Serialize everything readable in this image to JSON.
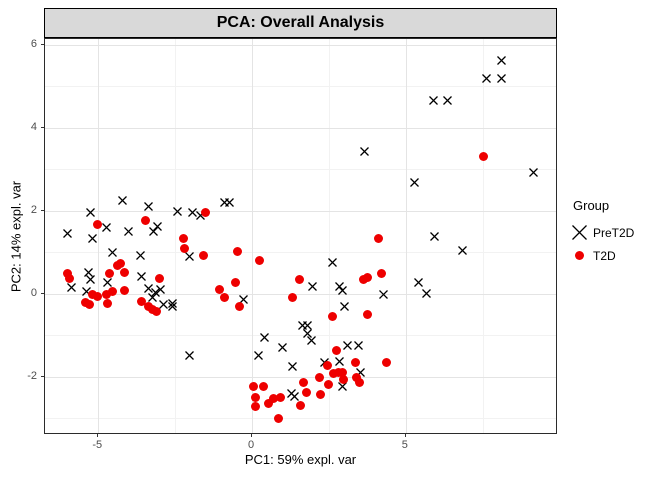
{
  "strip_title": "PCA: Overall Analysis",
  "axes": {
    "x_label": "PC1: 59% expl. var",
    "y_label": "PC2: 14% expl. var",
    "x_tick_labels": [
      "-5",
      "0",
      "5"
    ],
    "y_tick_labels": [
      "6",
      "4",
      "2",
      "0",
      "-2"
    ]
  },
  "legend": {
    "title": "Group",
    "items": [
      {
        "label": "PreT2D",
        "marker": "x",
        "color": "#000000"
      },
      {
        "label": "T2D",
        "marker": "circle",
        "color": "#ee0000"
      }
    ]
  },
  "colors": {
    "strip_background": "#d9d9d9",
    "panel_border": "#2b2b2b",
    "grid_major": "#e4e4e4",
    "grid_minor": "#f2f2f2",
    "axis_text": "#4d4d4d",
    "pret2d": "#000000",
    "t2d": "#ee0000"
  },
  "chart_data": {
    "type": "scatter",
    "title": "PCA: Overall Analysis",
    "xlabel": "PC1: 59% expl. var",
    "ylabel": "PC2: 14% expl. var",
    "xlim": [
      -6.7,
      9.9
    ],
    "ylim": [
      -3.4,
      6.15
    ],
    "x_ticks": [
      -5,
      0,
      5
    ],
    "y_ticks": [
      6,
      4,
      2,
      0,
      -2
    ],
    "x_minor_ticks": [
      -2.5,
      2.5,
      7.5
    ],
    "y_minor_ticks": [
      5,
      3,
      1,
      -1,
      -3
    ],
    "grid": true,
    "legend_position": "right",
    "legend_title": "Group",
    "series": [
      {
        "name": "PreT2D",
        "marker": "x",
        "color": "#000000",
        "points": [
          [
            8.13,
            5.68
          ],
          [
            7.61,
            5.25
          ],
          [
            8.13,
            5.25
          ],
          [
            5.89,
            4.7
          ],
          [
            6.37,
            4.7
          ],
          [
            3.67,
            3.49
          ],
          [
            9.14,
            2.98
          ],
          [
            5.27,
            2.74
          ],
          [
            -0.91,
            2.26
          ],
          [
            -0.72,
            2.26
          ],
          [
            -4.2,
            2.29
          ],
          [
            -3.38,
            2.14
          ],
          [
            -5.24,
            2.0
          ],
          [
            -2.41,
            2.04
          ],
          [
            -1.92,
            2.0
          ],
          [
            -1.66,
            1.93
          ],
          [
            -5.99,
            1.51
          ],
          [
            -4.72,
            1.64
          ],
          [
            -5.18,
            1.39
          ],
          [
            -4.03,
            1.54
          ],
          [
            -3.06,
            1.66
          ],
          [
            -3.19,
            1.54
          ],
          [
            -4.55,
            1.05
          ],
          [
            -3.64,
            0.96
          ],
          [
            -2.02,
            0.94
          ],
          [
            -5.31,
            0.55
          ],
          [
            -5.24,
            0.38
          ],
          [
            -5.86,
            0.19
          ],
          [
            -5.37,
            0.11
          ],
          [
            -4.69,
            0.31
          ],
          [
            -3.58,
            0.47
          ],
          [
            -3.37,
            0.17
          ],
          [
            -2.99,
            0.14
          ],
          [
            -3.14,
            0.07
          ],
          [
            -3.25,
            -0.05
          ],
          [
            -2.6,
            -0.18
          ],
          [
            -2.89,
            -0.22
          ],
          [
            -2.57,
            -0.25
          ],
          [
            -2.04,
            -1.45
          ],
          [
            -0.29,
            -0.08
          ],
          [
            2.63,
            0.8
          ],
          [
            1.98,
            0.21
          ],
          [
            2.86,
            0.23
          ],
          [
            2.93,
            0.13
          ],
          [
            3.02,
            -0.25
          ],
          [
            4.29,
            0.04
          ],
          [
            5.4,
            0.33
          ],
          [
            5.69,
            0.06
          ],
          [
            5.92,
            1.44
          ],
          [
            6.86,
            1.08
          ],
          [
            1.63,
            -0.73
          ],
          [
            1.79,
            -0.71
          ],
          [
            1.82,
            -0.9
          ],
          [
            1.95,
            -1.07
          ],
          [
            0.42,
            -1.02
          ],
          [
            0.98,
            -1.26
          ],
          [
            0.2,
            -1.45
          ],
          [
            1.33,
            -1.7
          ],
          [
            2.37,
            -1.62
          ],
          [
            3.12,
            -1.19
          ],
          [
            3.45,
            -1.21
          ],
          [
            2.86,
            -1.58
          ],
          [
            3.54,
            -1.86
          ],
          [
            2.93,
            -2.18
          ],
          [
            1.27,
            -2.35
          ],
          [
            1.37,
            -2.42
          ]
        ]
      },
      {
        "name": "T2D",
        "marker": "circle",
        "color": "#ee0000",
        "points": [
          [
            -5.04,
            1.68
          ],
          [
            -3.45,
            1.76
          ],
          [
            -1.5,
            1.95
          ],
          [
            -2.24,
            1.32
          ],
          [
            -2.18,
            1.1
          ],
          [
            -1.59,
            0.91
          ],
          [
            -5.99,
            0.48
          ],
          [
            -5.92,
            0.36
          ],
          [
            -4.62,
            0.48
          ],
          [
            -4.39,
            0.67
          ],
          [
            -4.29,
            0.72
          ],
          [
            -4.15,
            0.5
          ],
          [
            -4.15,
            0.08
          ],
          [
            -3.0,
            0.36
          ],
          [
            -5.18,
            -0.03
          ],
          [
            -5.04,
            -0.06
          ],
          [
            -5.43,
            -0.22
          ],
          [
            -5.27,
            -0.25
          ],
          [
            -4.72,
            -0.02
          ],
          [
            -4.55,
            0.06
          ],
          [
            -4.69,
            -0.24
          ],
          [
            -3.58,
            -0.18
          ],
          [
            -3.38,
            -0.3
          ],
          [
            -3.25,
            -0.37
          ],
          [
            -3.09,
            -0.44
          ],
          [
            -0.46,
            1.01
          ],
          [
            0.26,
            0.81
          ],
          [
            1.56,
            0.35
          ],
          [
            -1.07,
            0.11
          ],
          [
            -0.55,
            0.26
          ],
          [
            -0.91,
            -0.1
          ],
          [
            -0.42,
            -0.3
          ],
          [
            1.33,
            -0.08
          ],
          [
            2.63,
            -0.55
          ],
          [
            3.62,
            0.35
          ],
          [
            3.77,
            0.38
          ],
          [
            4.2,
            0.48
          ],
          [
            3.77,
            -0.49
          ],
          [
            4.13,
            1.32
          ],
          [
            7.54,
            3.32
          ],
          [
            2.75,
            -1.38
          ],
          [
            2.47,
            -1.74
          ],
          [
            3.35,
            -1.67
          ],
          [
            4.36,
            -1.67
          ],
          [
            2.65,
            -1.93
          ],
          [
            2.82,
            -1.91
          ],
          [
            2.93,
            -1.91
          ],
          [
            2.98,
            -2.06
          ],
          [
            2.18,
            -2.03
          ],
          [
            2.49,
            -2.18
          ],
          [
            3.41,
            -2.03
          ],
          [
            3.51,
            -2.15
          ],
          [
            2.23,
            -2.42
          ],
          [
            1.66,
            -2.15
          ],
          [
            1.76,
            -2.39
          ],
          [
            1.59,
            -2.7
          ],
          [
            0.06,
            -2.25
          ],
          [
            0.36,
            -2.25
          ],
          [
            0.1,
            -2.51
          ],
          [
            0.13,
            -2.71
          ],
          [
            0.55,
            -2.64
          ],
          [
            0.71,
            -2.54
          ],
          [
            0.94,
            -2.51
          ],
          [
            0.87,
            -3.0
          ]
        ]
      }
    ]
  }
}
